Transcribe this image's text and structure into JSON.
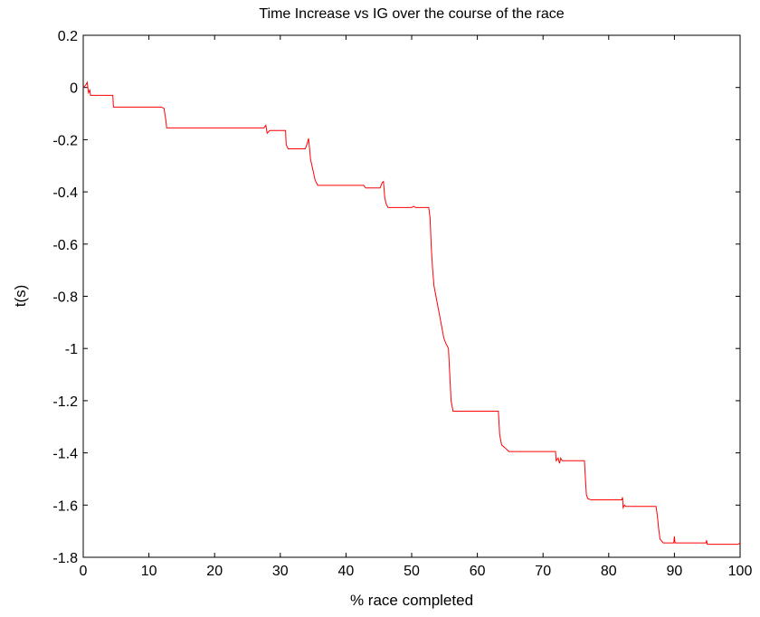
{
  "chart_data": {
    "type": "line",
    "title": "Time Increase vs IG over the course of the race",
    "xlabel": "% race completed",
    "ylabel": "t(s)",
    "xlim": [
      0,
      100
    ],
    "ylim": [
      -1.8,
      0.2
    ],
    "xticks": [
      0,
      10,
      20,
      30,
      40,
      50,
      60,
      70,
      80,
      90,
      100
    ],
    "yticks": [
      0.2,
      0,
      -0.2,
      -0.4,
      -0.6,
      -0.8,
      -1,
      -1.2,
      -1.4,
      -1.6,
      -1.8
    ],
    "xtick_labels": [
      "0",
      "10",
      "20",
      "30",
      "40",
      "50",
      "60",
      "70",
      "80",
      "90",
      "100"
    ],
    "ytick_labels": [
      "0.2",
      "0",
      "-0.2",
      "-0.4",
      "-0.6",
      "-0.8",
      "-1",
      "-1.2",
      "-1.4",
      "-1.6",
      "-1.8"
    ],
    "grid": false,
    "series": [
      {
        "color": "#ff0000",
        "x": [
          0,
          0.4,
          0.6,
          0.8,
          1.0,
          1.1,
          1.5,
          4.5,
          4.6,
          11.9,
          12.3,
          12.6,
          12.7,
          27.0,
          27.5,
          27.8,
          28.0,
          28.4,
          30.8,
          30.9,
          31.2,
          33.8,
          34.1,
          34.3,
          34.5,
          34.6,
          35.0,
          35.3,
          35.7,
          35.9,
          42.7,
          43.0,
          45.2,
          45.5,
          45.7,
          45.9,
          46.1,
          46.4,
          46.5,
          50.0,
          50.3,
          50.6,
          52.6,
          52.8,
          53.0,
          53.2,
          53.4,
          53.7,
          54.0,
          54.3,
          54.6,
          54.9,
          55.2,
          55.6,
          56.0,
          56.3,
          56.6,
          63.2,
          63.4,
          63.7,
          64.2,
          64.8,
          65.5,
          71.9,
          72.0,
          72.3,
          72.5,
          72.7,
          72.9,
          73.0,
          76.3,
          76.5,
          76.6,
          76.8,
          77.3,
          82.0,
          82.1,
          82.2,
          82.4,
          82.6,
          87.2,
          87.4,
          87.6,
          87.8,
          88.3,
          89.9,
          90.0,
          90.1,
          94.8,
          94.9,
          95.0,
          99.7,
          100
        ],
        "y": [
          0,
          0.01,
          0.02,
          -0.02,
          -0.01,
          -0.03,
          -0.03,
          -0.03,
          -0.075,
          -0.075,
          -0.08,
          -0.13,
          -0.155,
          -0.155,
          -0.155,
          -0.145,
          -0.175,
          -0.165,
          -0.165,
          -0.22,
          -0.235,
          -0.235,
          -0.215,
          -0.195,
          -0.245,
          -0.275,
          -0.32,
          -0.355,
          -0.375,
          -0.375,
          -0.375,
          -0.385,
          -0.385,
          -0.365,
          -0.36,
          -0.42,
          -0.445,
          -0.46,
          -0.46,
          -0.46,
          -0.455,
          -0.46,
          -0.46,
          -0.5,
          -0.62,
          -0.7,
          -0.76,
          -0.8,
          -0.84,
          -0.88,
          -0.92,
          -0.96,
          -0.98,
          -1.0,
          -1.2,
          -1.24,
          -1.24,
          -1.24,
          -1.33,
          -1.37,
          -1.38,
          -1.395,
          -1.395,
          -1.395,
          -1.43,
          -1.42,
          -1.44,
          -1.42,
          -1.43,
          -1.43,
          -1.43,
          -1.52,
          -1.56,
          -1.575,
          -1.58,
          -1.58,
          -1.57,
          -1.61,
          -1.6,
          -1.605,
          -1.605,
          -1.64,
          -1.69,
          -1.73,
          -1.745,
          -1.745,
          -1.72,
          -1.745,
          -1.745,
          -1.735,
          -1.75,
          -1.75,
          -1.745
        ]
      }
    ]
  }
}
